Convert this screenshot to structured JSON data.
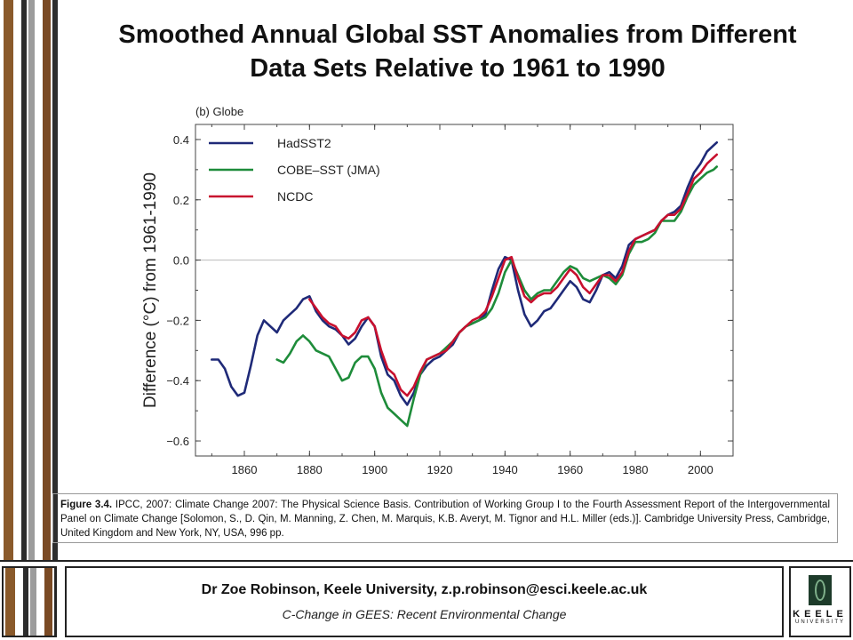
{
  "slide": {
    "title_line1": "Smoothed Annual Global SST Anomalies from Different",
    "title_line2": "Data Sets Relative to 1961 to 1990",
    "caption_bold": "Figure 3.4.",
    "caption_text": " IPCC, 2007: Climate Change 2007: The Physical Science Basis. Contribution of Working Group I to the Fourth Assessment Report of the Intergovernmental Panel on Climate Change [Solomon, S., D. Qin, M. Manning, Z. Chen, M. Marquis, K.B. Averyt, M. Tignor and H.L. Miller (eds.)]. Cambridge University Press, Cambridge, United Kingdom and New York, NY, USA, 996 pp.",
    "footer_author": "Dr Zoe Robinson, Keele University, z.p.robinson@esci.keele.ac.uk",
    "footer_course": "C-Change in GEES: Recent Environmental Change",
    "logo_word": "KEELE",
    "logo_sub": "UNIVERSITY",
    "stripe_colors": [
      "#8a5a2b",
      "#ffffff",
      "#2d2d2d",
      "#9c9c9c",
      "#ffffff",
      "#7a4a24",
      "#2d2d2d"
    ]
  },
  "chart_data": {
    "type": "line",
    "title": "(b) Globe",
    "xlabel": "",
    "ylabel": "Difference (°C) from 1961-1990",
    "xlim": [
      1845,
      2010
    ],
    "ylim": [
      -0.65,
      0.45
    ],
    "xticks": [
      1860,
      1880,
      1900,
      1920,
      1940,
      1960,
      1980,
      2000
    ],
    "yticks": [
      -0.6,
      -0.4,
      -0.2,
      0.0,
      0.2,
      0.4
    ],
    "ytick_labels": [
      "−0.6",
      "−0.4",
      "−0.2",
      "0.0",
      "0.2",
      "0.4"
    ],
    "reference_line": 0.0,
    "legend_position": "top-left",
    "series": [
      {
        "name": "HadSST2",
        "color": "#1f2a78",
        "x": [
          1850,
          1852,
          1854,
          1856,
          1858,
          1860,
          1862,
          1864,
          1866,
          1868,
          1870,
          1872,
          1874,
          1876,
          1878,
          1880,
          1882,
          1884,
          1886,
          1888,
          1890,
          1892,
          1894,
          1896,
          1898,
          1900,
          1902,
          1904,
          1906,
          1908,
          1910,
          1912,
          1914,
          1916,
          1918,
          1920,
          1922,
          1924,
          1926,
          1928,
          1930,
          1932,
          1934,
          1936,
          1938,
          1940,
          1942,
          1944,
          1946,
          1948,
          1950,
          1952,
          1954,
          1956,
          1958,
          1960,
          1962,
          1964,
          1966,
          1968,
          1970,
          1972,
          1974,
          1976,
          1978,
          1980,
          1982,
          1984,
          1986,
          1988,
          1990,
          1992,
          1994,
          1996,
          1998,
          2000,
          2002,
          2004,
          2005
        ],
        "y": [
          -0.33,
          -0.33,
          -0.36,
          -0.42,
          -0.45,
          -0.44,
          -0.35,
          -0.25,
          -0.2,
          -0.22,
          -0.24,
          -0.2,
          -0.18,
          -0.16,
          -0.13,
          -0.12,
          -0.17,
          -0.2,
          -0.22,
          -0.23,
          -0.25,
          -0.28,
          -0.26,
          -0.22,
          -0.19,
          -0.22,
          -0.32,
          -0.38,
          -0.4,
          -0.45,
          -0.48,
          -0.44,
          -0.38,
          -0.35,
          -0.33,
          -0.32,
          -0.3,
          -0.28,
          -0.24,
          -0.22,
          -0.21,
          -0.2,
          -0.18,
          -0.1,
          -0.03,
          0.01,
          0.0,
          -0.1,
          -0.18,
          -0.22,
          -0.2,
          -0.17,
          -0.16,
          -0.13,
          -0.1,
          -0.07,
          -0.09,
          -0.13,
          -0.14,
          -0.1,
          -0.05,
          -0.04,
          -0.06,
          -0.02,
          0.05,
          0.07,
          0.08,
          0.09,
          0.1,
          0.13,
          0.15,
          0.16,
          0.18,
          0.24,
          0.29,
          0.32,
          0.36,
          0.38,
          0.39
        ]
      },
      {
        "name": "COBE–SST (JMA)",
        "color": "#1e8c3a",
        "x": [
          1870,
          1872,
          1874,
          1876,
          1878,
          1880,
          1882,
          1884,
          1886,
          1888,
          1890,
          1892,
          1894,
          1896,
          1898,
          1900,
          1902,
          1904,
          1906,
          1908,
          1910,
          1912,
          1914,
          1916,
          1918,
          1920,
          1922,
          1924,
          1926,
          1928,
          1930,
          1932,
          1934,
          1936,
          1938,
          1940,
          1942,
          1944,
          1946,
          1948,
          1950,
          1952,
          1954,
          1956,
          1958,
          1960,
          1962,
          1964,
          1966,
          1968,
          1970,
          1972,
          1974,
          1976,
          1978,
          1980,
          1982,
          1984,
          1986,
          1988,
          1990,
          1992,
          1994,
          1996,
          1998,
          2000,
          2002,
          2004,
          2005
        ],
        "y": [
          -0.33,
          -0.34,
          -0.31,
          -0.27,
          -0.25,
          -0.27,
          -0.3,
          -0.31,
          -0.32,
          -0.36,
          -0.4,
          -0.39,
          -0.34,
          -0.32,
          -0.32,
          -0.36,
          -0.44,
          -0.49,
          -0.51,
          -0.53,
          -0.55,
          -0.46,
          -0.38,
          -0.33,
          -0.32,
          -0.31,
          -0.29,
          -0.27,
          -0.24,
          -0.22,
          -0.21,
          -0.2,
          -0.19,
          -0.16,
          -0.11,
          -0.04,
          0.0,
          -0.05,
          -0.1,
          -0.13,
          -0.11,
          -0.1,
          -0.1,
          -0.07,
          -0.04,
          -0.02,
          -0.03,
          -0.06,
          -0.07,
          -0.06,
          -0.05,
          -0.06,
          -0.08,
          -0.05,
          0.02,
          0.06,
          0.06,
          0.07,
          0.09,
          0.13,
          0.13,
          0.13,
          0.16,
          0.21,
          0.25,
          0.27,
          0.29,
          0.3,
          0.31
        ]
      },
      {
        "name": "NCDC",
        "color": "#c8102e",
        "x": [
          1880,
          1882,
          1884,
          1886,
          1888,
          1890,
          1892,
          1894,
          1896,
          1898,
          1900,
          1902,
          1904,
          1906,
          1908,
          1910,
          1912,
          1914,
          1916,
          1918,
          1920,
          1922,
          1924,
          1926,
          1928,
          1930,
          1932,
          1934,
          1936,
          1938,
          1940,
          1942,
          1944,
          1946,
          1948,
          1950,
          1952,
          1954,
          1956,
          1958,
          1960,
          1962,
          1964,
          1966,
          1968,
          1970,
          1972,
          1974,
          1976,
          1978,
          1980,
          1982,
          1984,
          1986,
          1988,
          1990,
          1992,
          1994,
          1996,
          1998,
          2000,
          2002,
          2004,
          2005
        ],
        "y": [
          -0.13,
          -0.16,
          -0.19,
          -0.21,
          -0.22,
          -0.25,
          -0.26,
          -0.24,
          -0.2,
          -0.19,
          -0.22,
          -0.3,
          -0.36,
          -0.38,
          -0.43,
          -0.45,
          -0.42,
          -0.37,
          -0.33,
          -0.32,
          -0.31,
          -0.3,
          -0.27,
          -0.24,
          -0.22,
          -0.2,
          -0.19,
          -0.17,
          -0.12,
          -0.06,
          0.0,
          0.01,
          -0.06,
          -0.12,
          -0.14,
          -0.12,
          -0.11,
          -0.11,
          -0.09,
          -0.06,
          -0.03,
          -0.05,
          -0.09,
          -0.11,
          -0.08,
          -0.05,
          -0.05,
          -0.07,
          -0.04,
          0.03,
          0.07,
          0.08,
          0.09,
          0.1,
          0.13,
          0.15,
          0.15,
          0.17,
          0.22,
          0.27,
          0.29,
          0.32,
          0.34,
          0.35
        ]
      }
    ]
  }
}
